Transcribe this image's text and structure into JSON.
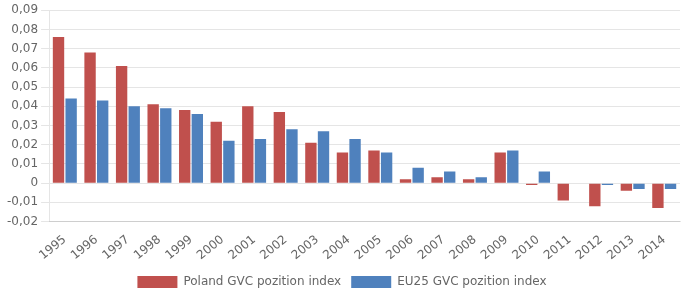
{
  "chart_data": {
    "type": "bar",
    "categories": [
      "1995",
      "1996",
      "1997",
      "1998",
      "1999",
      "2000",
      "2001",
      "2002",
      "2003",
      "2004",
      "2005",
      "2006",
      "2007",
      "2008",
      "2009",
      "2010",
      "2011",
      "2012",
      "2013",
      "2014"
    ],
    "series": [
      {
        "name": "Poland GVC pozition index",
        "color": "#C0504D",
        "values": [
          0.076,
          0.068,
          0.061,
          0.041,
          0.038,
          0.032,
          0.04,
          0.037,
          0.021,
          0.016,
          0.017,
          0.002,
          0.003,
          0.002,
          0.016,
          -0.001,
          -0.009,
          -0.012,
          -0.004,
          -0.013
        ]
      },
      {
        "name": "EU25 GVC pozition index",
        "color": "#4F81BD",
        "values": [
          0.044,
          0.043,
          0.04,
          0.039,
          0.036,
          0.022,
          0.023,
          0.028,
          0.027,
          0.023,
          0.016,
          0.008,
          0.006,
          0.003,
          0.017,
          0.006,
          0.0,
          -0.001,
          -0.003,
          -0.003
        ]
      }
    ],
    "ylim": [
      -0.02,
      0.09
    ],
    "yticks": [
      {
        "value": -0.02,
        "label": "-0,02"
      },
      {
        "value": -0.01,
        "label": "-0,01"
      },
      0,
      {
        "value": 0.01,
        "label": "0,01"
      },
      {
        "value": 0.02,
        "label": "0,02"
      },
      {
        "value": 0.03,
        "label": "0,03"
      },
      {
        "value": 0.04,
        "label": "0,04"
      },
      {
        "value": 0.05,
        "label": "0,05"
      },
      {
        "value": 0.06,
        "label": "0,06"
      },
      {
        "value": 0.07,
        "label": "0,07"
      },
      {
        "value": 0.08,
        "label": "0,08"
      },
      {
        "value": 0.09,
        "label": "0,09"
      }
    ],
    "grid": "y",
    "legend": "bottom"
  }
}
